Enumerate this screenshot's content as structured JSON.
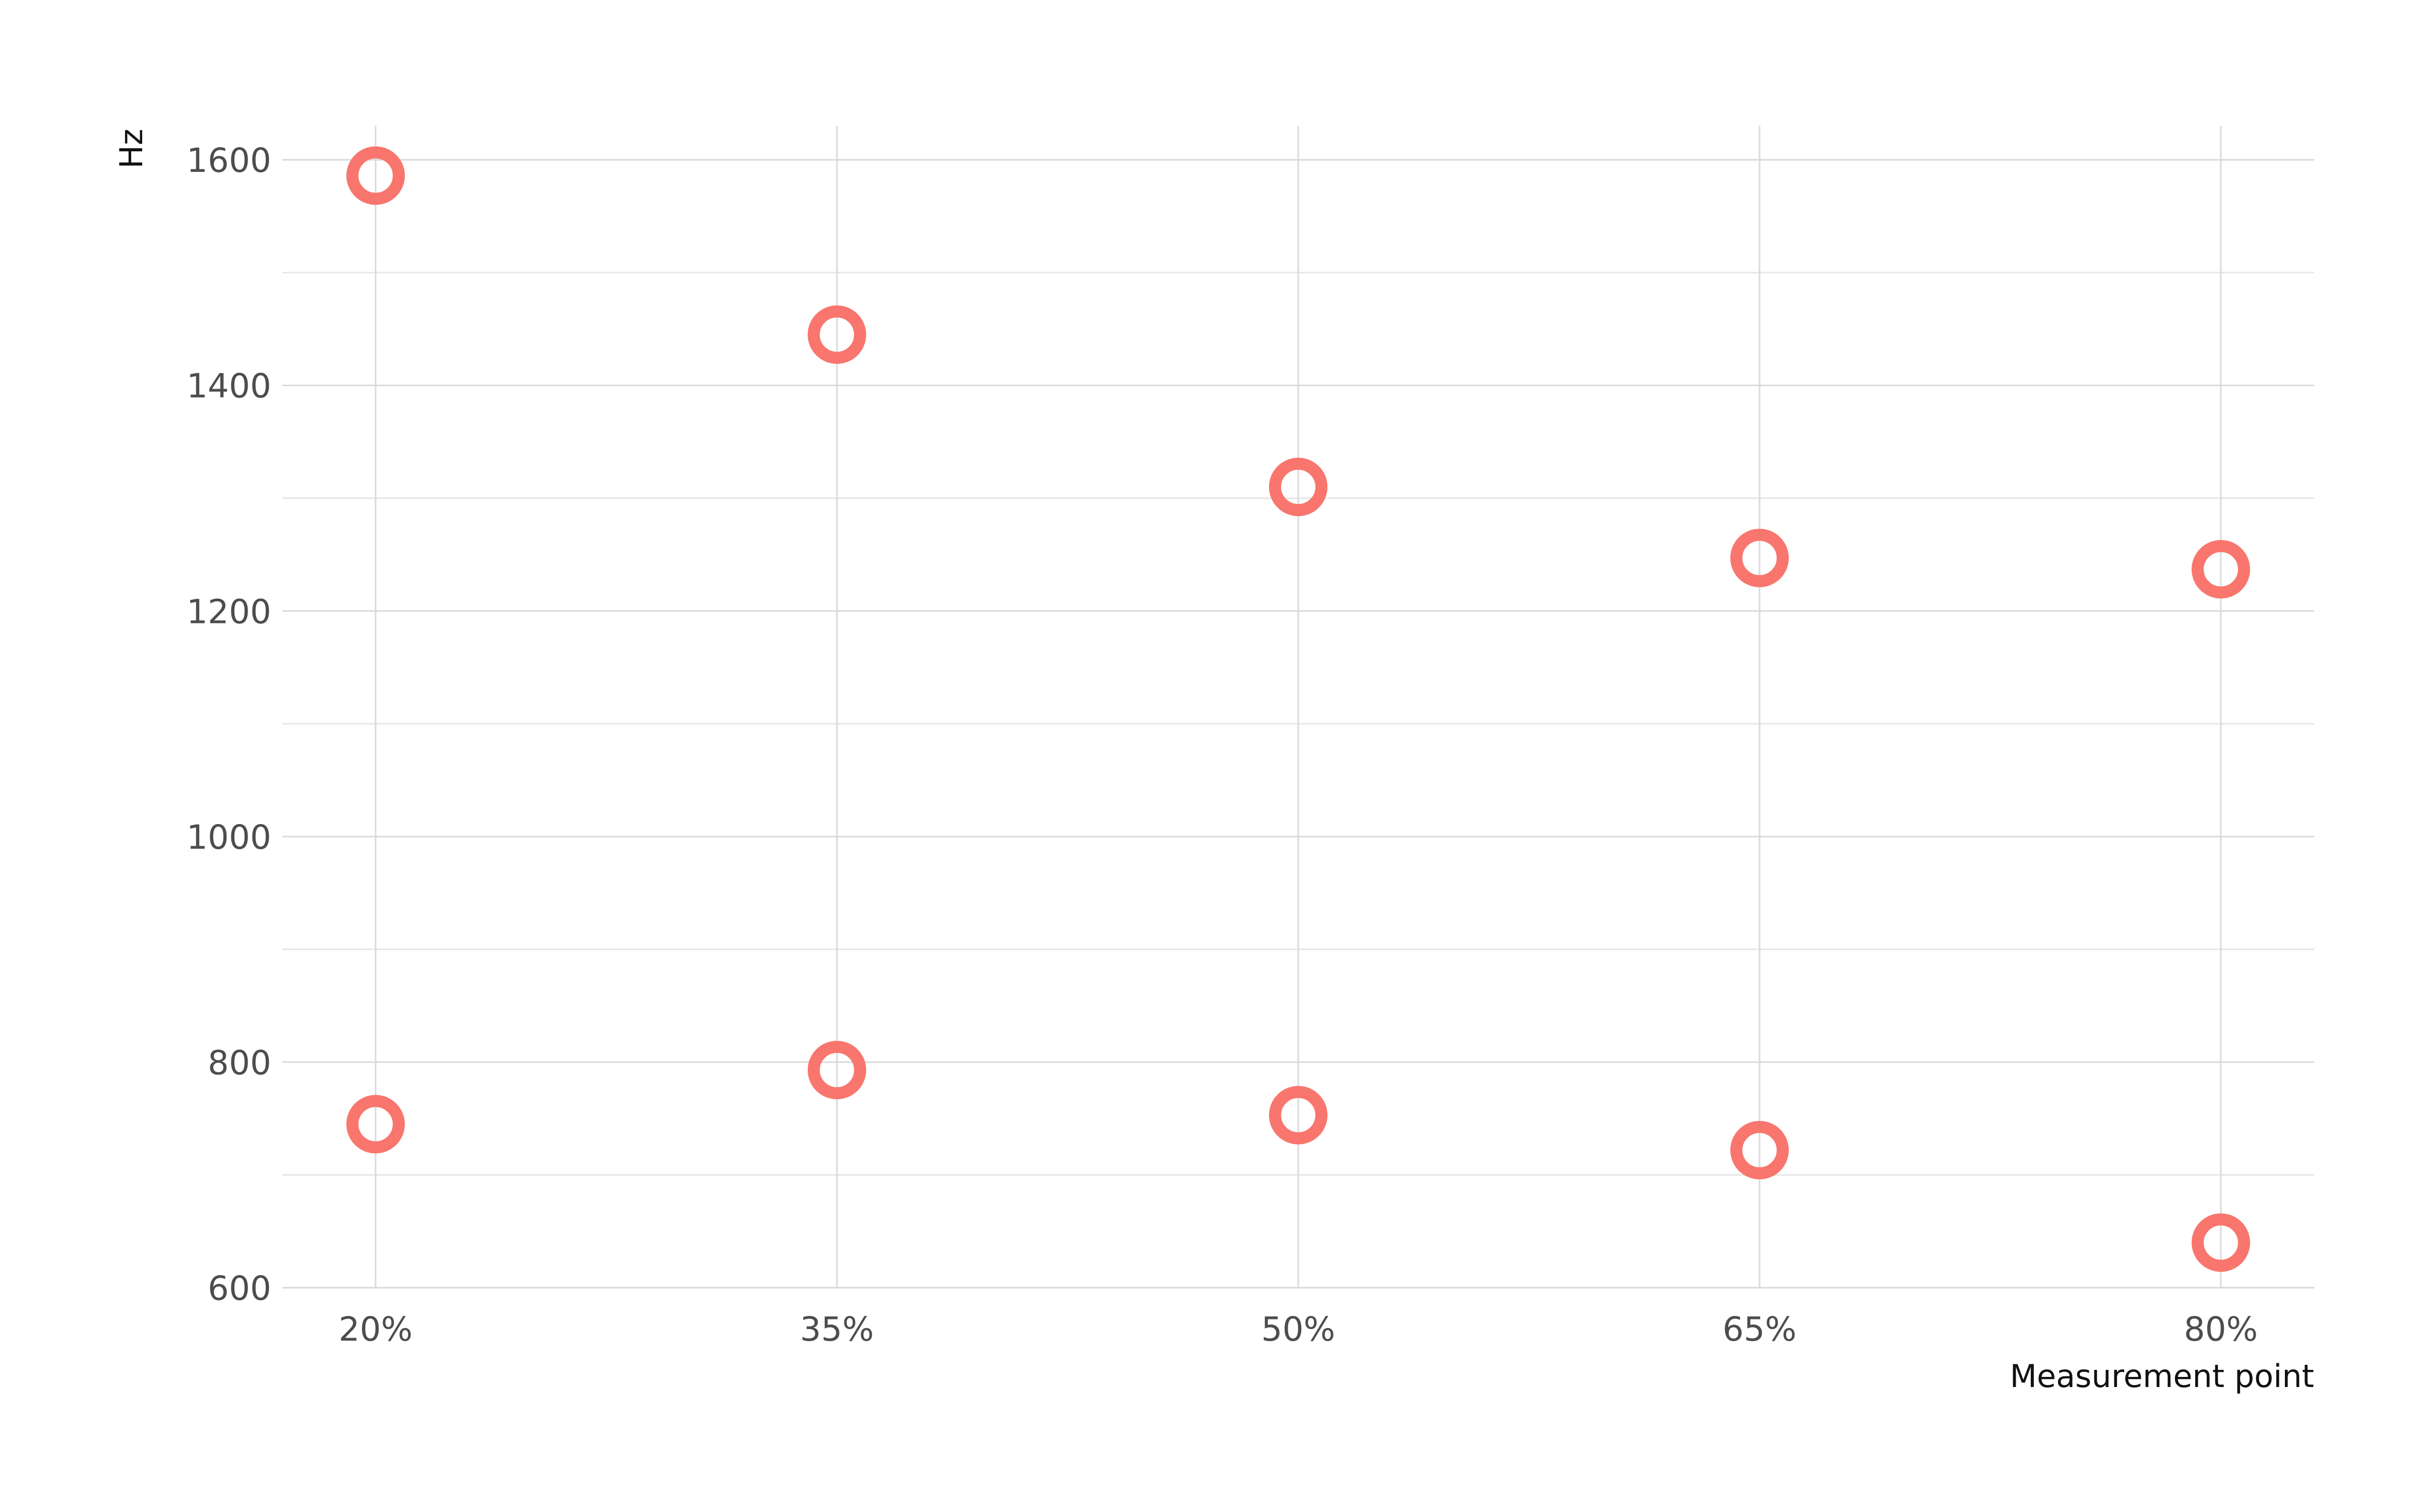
{
  "chart_data": {
    "type": "scatter",
    "title": "",
    "xlabel": "Measurement point",
    "ylabel": "Hz",
    "x_categories": [
      "20%",
      "35%",
      "50%",
      "65%",
      "80%"
    ],
    "series": [
      {
        "values": [
          1586,
          1445,
          1310,
          1247,
          1237
        ]
      },
      {
        "values": [
          745,
          793,
          753,
          722,
          640
        ]
      }
    ],
    "ylim": [
      600,
      1630
    ],
    "y_ticks": [
      600,
      800,
      1000,
      1200,
      1400,
      1600
    ],
    "y_tick_labels": [
      "600",
      "800",
      "1000",
      "1200",
      "1400",
      "1600"
    ],
    "y_minor_ticks": [
      700,
      900,
      1100,
      1300,
      1500
    ],
    "grid": true,
    "legend": "none",
    "point_color": "#f8766d",
    "marker": "hollow-circle"
  }
}
